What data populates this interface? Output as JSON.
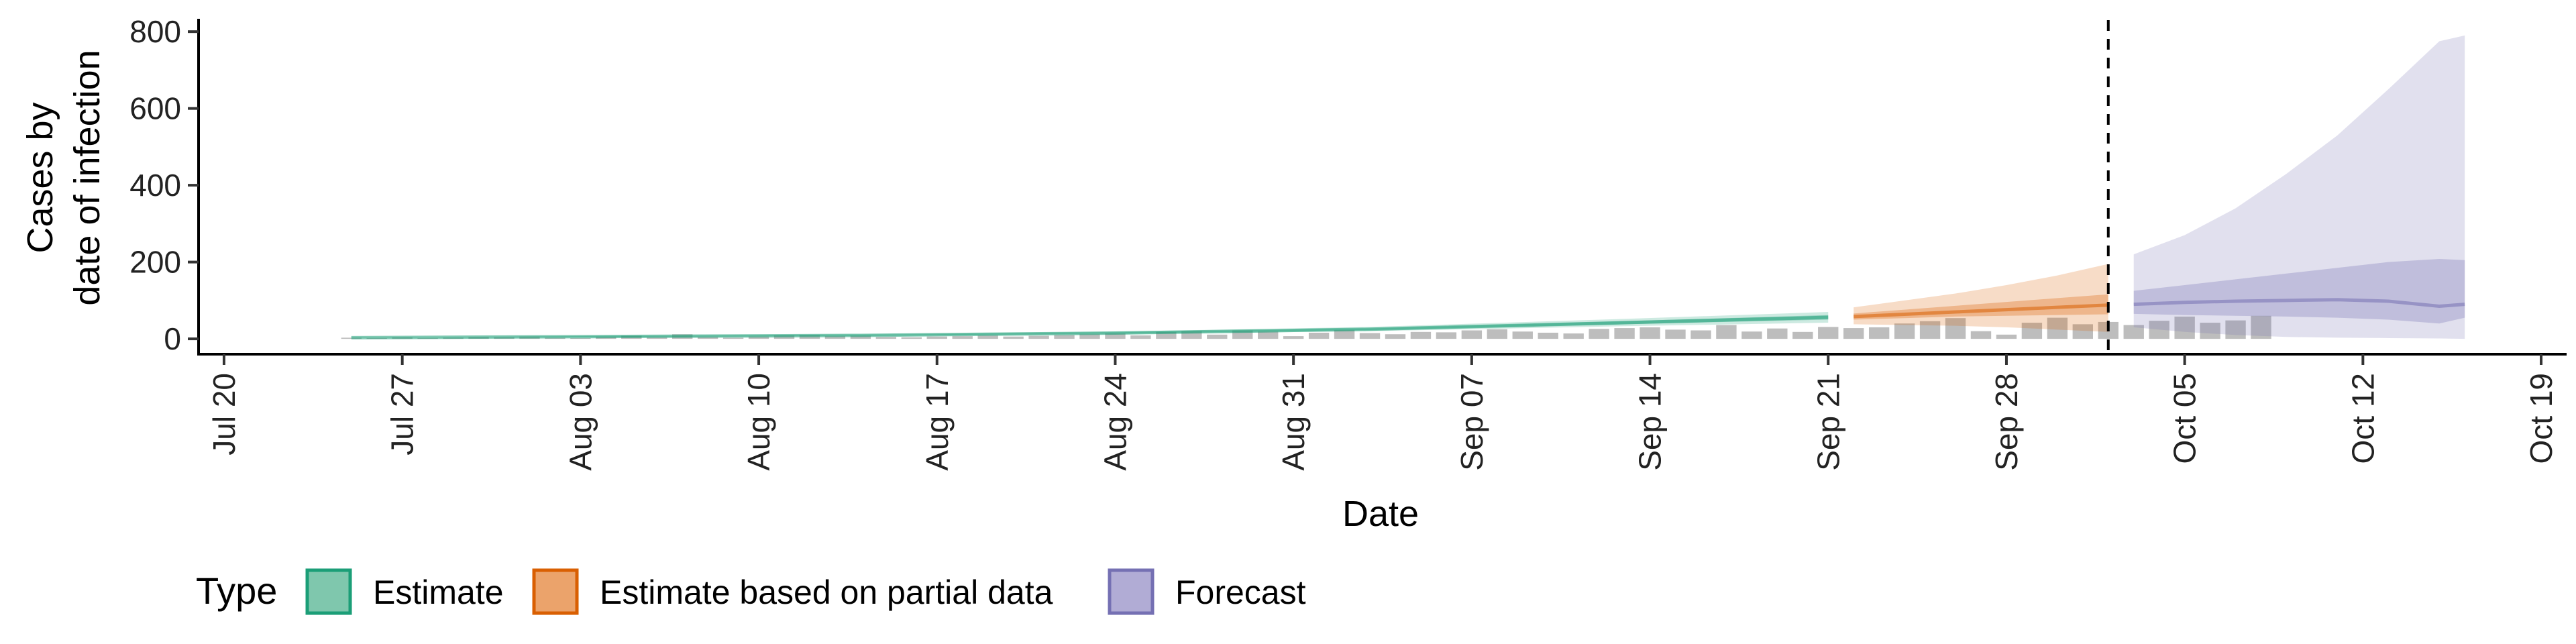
{
  "chart_data": {
    "type": "area",
    "xlabel": "Date",
    "ylabel_lines": [
      "Cases by",
      "date of infection"
    ],
    "y_ticks": [
      0,
      200,
      400,
      600,
      800
    ],
    "ylim": [
      -40,
      830
    ],
    "xlim": [
      "2020-07-19",
      "2020-10-20"
    ],
    "x_ticks": [
      {
        "date": "2020-07-20",
        "label": "Jul 20"
      },
      {
        "date": "2020-07-27",
        "label": "Jul 27"
      },
      {
        "date": "2020-08-03",
        "label": "Aug 03"
      },
      {
        "date": "2020-08-10",
        "label": "Aug 10"
      },
      {
        "date": "2020-08-17",
        "label": "Aug 17"
      },
      {
        "date": "2020-08-24",
        "label": "Aug 24"
      },
      {
        "date": "2020-08-31",
        "label": "Aug 31"
      },
      {
        "date": "2020-09-07",
        "label": "Sep 07"
      },
      {
        "date": "2020-09-14",
        "label": "Sep 14"
      },
      {
        "date": "2020-09-21",
        "label": "Sep 21"
      },
      {
        "date": "2020-09-28",
        "label": "Sep 28"
      },
      {
        "date": "2020-10-05",
        "label": "Oct 05"
      },
      {
        "date": "2020-10-12",
        "label": "Oct 12"
      },
      {
        "date": "2020-10-19",
        "label": "Oct 19"
      }
    ],
    "forecast_start_date": "2020-10-02",
    "grid": false,
    "legend_placement": "bottom-left",
    "legend": {
      "title": "Type",
      "items": [
        {
          "label": "Estimate",
          "fill": "#7fc7ad",
          "border": "#1b9e77"
        },
        {
          "label": "Estimate based on partial data",
          "fill": "#eba36b",
          "border": "#d95f02"
        },
        {
          "label": "Forecast",
          "fill": "#b1acd5",
          "border": "#7570b3"
        }
      ]
    },
    "colors": {
      "Estimate": "#1b9e77",
      "Estimate based on partial data": "#d95f02",
      "Forecast": "#7570b3",
      "observed_bars": "#bdbdbd"
    },
    "observed_cases": {
      "start_date": "2020-07-25",
      "values": [
        3,
        2,
        4,
        2,
        3,
        5,
        4,
        6,
        3,
        2,
        5,
        8,
        4,
        12,
        5,
        3,
        6,
        9,
        10,
        7,
        8,
        5,
        4,
        6,
        7,
        9,
        6,
        8,
        10,
        12,
        14,
        9,
        18,
        20,
        11,
        22,
        19,
        7,
        16,
        23,
        15,
        12,
        18,
        17,
        22,
        25,
        19,
        16,
        14,
        26,
        28,
        30,
        24,
        22,
        36,
        19,
        27,
        18,
        31,
        28,
        30,
        40,
        46,
        54,
        20,
        11,
        42,
        55,
        38,
        44,
        36,
        47,
        58,
        42,
        48,
        60
      ]
    },
    "series": [
      {
        "name": "Estimate",
        "x": [
          "2020-07-25",
          "2020-08-04",
          "2020-08-14",
          "2020-08-24",
          "2020-09-03",
          "2020-09-13",
          "2020-09-21"
        ],
        "median": [
          3,
          6,
          9,
          15,
          25,
          42,
          56
        ],
        "lower90": [
          2,
          4,
          7,
          12,
          20,
          33,
          42
        ],
        "upper90": [
          4,
          8,
          12,
          19,
          31,
          52,
          70
        ],
        "lower50": [
          3,
          5,
          8,
          14,
          23,
          38,
          50
        ],
        "upper50": [
          3,
          7,
          10,
          17,
          27,
          46,
          62
        ]
      },
      {
        "name": "Estimate based on partial data",
        "x": [
          "2020-09-22",
          "2020-09-24",
          "2020-09-26",
          "2020-09-28",
          "2020-09-30",
          "2020-10-02"
        ],
        "median": [
          58,
          64,
          70,
          76,
          82,
          88
        ],
        "lower90": [
          38,
          36,
          34,
          30,
          24,
          18
        ],
        "upper90": [
          82,
          100,
          118,
          140,
          165,
          195
        ],
        "lower50": [
          50,
          54,
          58,
          60,
          62,
          64
        ],
        "upper50": [
          66,
          76,
          86,
          96,
          106,
          116
        ]
      },
      {
        "name": "Forecast",
        "x": [
          "2020-10-03",
          "2020-10-05",
          "2020-10-07",
          "2020-10-09",
          "2020-10-11",
          "2020-10-13",
          "2020-10-15",
          "2020-10-16"
        ],
        "median": [
          90,
          95,
          98,
          100,
          102,
          98,
          85,
          90
        ],
        "lower90": [
          30,
          18,
          10,
          5,
          3,
          2,
          1,
          0
        ],
        "upper90": [
          220,
          270,
          340,
          430,
          530,
          650,
          775,
          790
        ],
        "lower50": [
          65,
          62,
          60,
          58,
          55,
          50,
          40,
          55
        ],
        "upper50": [
          125,
          140,
          155,
          170,
          185,
          200,
          208,
          205
        ]
      }
    ]
  }
}
